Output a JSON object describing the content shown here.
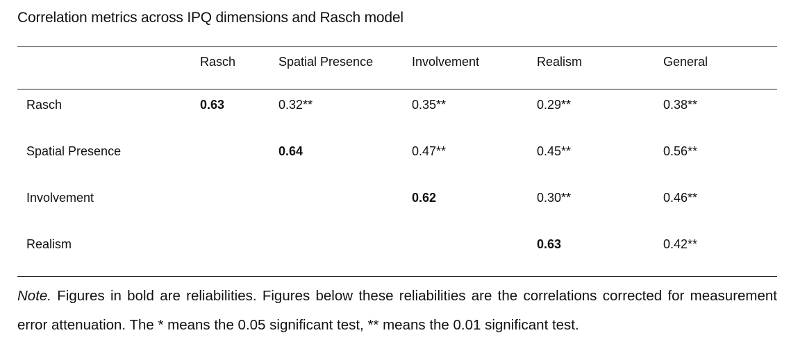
{
  "caption": "Correlation metrics across IPQ dimensions and Rasch model",
  "table": {
    "columns": [
      "Rasch",
      "Spatial Presence",
      "Involvement",
      "Realism",
      "General"
    ],
    "rows": [
      {
        "label": "Rasch",
        "cells": [
          "0.63",
          "0.32**",
          "0.35**",
          "0.29**",
          "0.38**"
        ]
      },
      {
        "label": "Spatial Presence",
        "cells": [
          "",
          "0.64",
          "0.47**",
          "0.45**",
          "0.56**"
        ]
      },
      {
        "label": "Involvement",
        "cells": [
          "",
          "",
          "0.62",
          "0.30**",
          "0.46**"
        ]
      },
      {
        "label": "Realism",
        "cells": [
          "",
          "",
          "",
          "0.63",
          "0.42**"
        ]
      }
    ]
  },
  "note": {
    "label": "Note.",
    "text": "Figures in bold are reliabilities. Figures below these reliabilities are the correlations corrected for measurement error attenuation. The * means the 0.05 significant test, ** means the 0.01 significant test."
  }
}
